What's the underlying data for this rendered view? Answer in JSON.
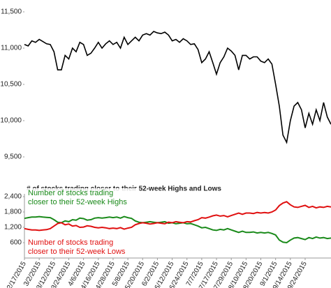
{
  "chart_data": [
    {
      "type": "line",
      "color": "#000000",
      "values": [
        11050,
        11030,
        11100,
        11080,
        11120,
        11090,
        11060,
        11050,
        10950,
        10700,
        10700,
        10900,
        10850,
        11000,
        10950,
        11080,
        11050,
        10900,
        10930,
        11000,
        11080,
        11000,
        11060,
        11100,
        11050,
        11080,
        11000,
        11150,
        11050,
        11100,
        11150,
        11100,
        11180,
        11200,
        11180,
        11230,
        11210,
        11200,
        11220,
        11180,
        11100,
        11120,
        11080,
        11130,
        11100,
        11050,
        11060,
        10980,
        10800,
        10850,
        10950,
        10800,
        10640,
        10800,
        10880,
        11000,
        10960,
        10900,
        10700,
        10900,
        10900,
        10850,
        10880,
        10880,
        10820,
        10800,
        10850,
        10780,
        10500,
        10200,
        9800,
        9700,
        10000,
        10200,
        10250,
        10150,
        9900,
        10100,
        9950,
        10150,
        10000,
        10250,
        10050,
        9950
      ],
      "ylim": [
        9500,
        11500
      ],
      "yticks": [
        {
          "value": 9500,
          "label": "9,500"
        },
        {
          "value": 10000,
          "label": "10,000"
        },
        {
          "value": 10500,
          "label": "10,500"
        },
        {
          "value": 11000,
          "label": "11,000"
        },
        {
          "value": 11500,
          "label": "11,500"
        }
      ]
    },
    {
      "type": "line",
      "title": "# of stocks trading closer to their 52-week Highs and Lows",
      "categories": [
        "2/17/2015",
        null,
        null,
        null,
        "3/2/2015",
        null,
        null,
        null,
        "3/12/2015",
        null,
        null,
        null,
        "3/24/2015",
        null,
        null,
        null,
        "4/6/2015",
        null,
        null,
        null,
        "4/16/2015",
        null,
        null,
        null,
        "4/28/2015",
        null,
        null,
        null,
        "5/8/2015",
        null,
        null,
        null,
        "5/20/2015",
        null,
        null,
        null,
        "6/2/2015",
        null,
        null,
        null,
        "6/12/2015",
        null,
        null,
        null,
        "6/24/2015",
        null,
        null,
        null,
        "7/7/2015",
        null,
        null,
        null,
        "7/17/2015",
        null,
        null,
        null,
        "7/29/2015",
        null,
        null,
        null,
        "8/10/2015",
        null,
        null,
        null,
        "8/20/2015",
        null,
        null,
        null,
        "9/1/2015",
        null,
        null,
        null,
        "9/14/2015",
        null,
        null,
        null,
        "9/24/2015",
        null,
        null,
        null,
        null,
        null,
        null,
        null
      ],
      "series": [
        {
          "name": [
            "Number of stocks trading",
            "closer to their 52-week Highs"
          ],
          "color": "#1a8a1a",
          "values": [
            1550,
            1580,
            1600,
            1600,
            1620,
            1600,
            1590,
            1580,
            1500,
            1400,
            1380,
            1450,
            1420,
            1500,
            1480,
            1560,
            1540,
            1480,
            1500,
            1560,
            1580,
            1560,
            1580,
            1600,
            1580,
            1600,
            1560,
            1620,
            1580,
            1550,
            1450,
            1400,
            1380,
            1400,
            1420,
            1400,
            1380,
            1400,
            1420,
            1360,
            1380,
            1340,
            1360,
            1380,
            1340,
            1350,
            1300,
            1250,
            1180,
            1200,
            1150,
            1100,
            1080,
            1120,
            1100,
            1150,
            1100,
            1050,
            1000,
            1050,
            1000,
            1000,
            1020,
            980,
            1000,
            980,
            1000,
            960,
            900,
            700,
            620,
            600,
            700,
            780,
            800,
            760,
            720,
            800,
            760,
            820,
            780,
            800,
            760,
            780
          ]
        },
        {
          "name": [
            "Number of stocks trading",
            "closer to their 52-week Lows"
          ],
          "color": "#e01010",
          "values": [
            1150,
            1120,
            1100,
            1100,
            1080,
            1100,
            1110,
            1150,
            1250,
            1350,
            1380,
            1300,
            1330,
            1250,
            1270,
            1200,
            1210,
            1260,
            1240,
            1200,
            1180,
            1200,
            1180,
            1150,
            1170,
            1150,
            1190,
            1130,
            1170,
            1200,
            1300,
            1350,
            1380,
            1360,
            1330,
            1350,
            1380,
            1360,
            1340,
            1400,
            1380,
            1420,
            1400,
            1380,
            1420,
            1410,
            1460,
            1500,
            1580,
            1560,
            1600,
            1650,
            1680,
            1640,
            1660,
            1610,
            1660,
            1710,
            1760,
            1710,
            1760,
            1760,
            1740,
            1780,
            1760,
            1780,
            1760,
            1800,
            1880,
            2050,
            2150,
            2200,
            2080,
            2000,
            1980,
            2020,
            2060,
            1980,
            2020,
            1960,
            2000,
            1980,
            2020,
            2000
          ]
        }
      ],
      "ylim": [
        0,
        2400
      ],
      "yticks": [
        {
          "value": 600,
          "label": "600"
        },
        {
          "value": 1200,
          "label": "1,200"
        },
        {
          "value": 1800,
          "label": "1,800"
        },
        {
          "value": 2400,
          "label": "2,400"
        }
      ]
    }
  ]
}
